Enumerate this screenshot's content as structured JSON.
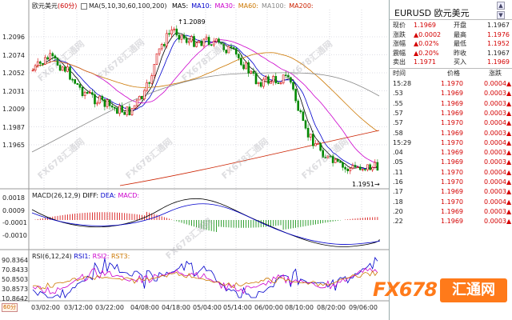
{
  "main_header": {
    "symbol_name": "欧元美元",
    "period": "(60分)",
    "ma_params": "MA(5,10,30,60,100,200)",
    "ma_labels": [
      {
        "label": "MA5:",
        "color": "#000000"
      },
      {
        "label": "MA10:",
        "color": "#0000cc"
      },
      {
        "label": "MA30:",
        "color": "#cc00cc"
      },
      {
        "label": "MA60:",
        "color": "#cc7700"
      },
      {
        "label": "MA100:",
        "color": "#888888"
      },
      {
        "label": "MA200:",
        "color": "#cc2200"
      }
    ]
  },
  "macd_header": {
    "params": "MACD(26,12,9)",
    "diff": "DIFF:",
    "dea": "DEA:",
    "macd": "MACD:"
  },
  "rsi_header": {
    "params": "RSI(6,12,24)",
    "rsi1": "RSI1:",
    "rsi2": "RSI2:",
    "rsi3": "RST3:"
  },
  "price_axis": [
    "1.2096",
    "1.2074",
    "1.2052",
    "1.2031",
    "1.2009",
    "1.1987",
    "1.1965"
  ],
  "macd_axis": [
    "0.0018",
    "0.0009",
    "-0.0001",
    "-0.0010"
  ],
  "rsi_axis": [
    "90.8364",
    "70.8433",
    "50.8503",
    "30.8573",
    "10.8642"
  ],
  "x_axis": [
    "03/02:00",
    "03/12:00",
    "03/22:00",
    "04/08:00",
    "04/18:00",
    "05/04:00",
    "05/14:00",
    "06/00:00",
    "08/10:00",
    "08/20:00",
    "09/06:00"
  ],
  "annotations": {
    "high": "1.2089",
    "low": "1.1951"
  },
  "period_button": "60分",
  "watermarks": [
    "FX678汇通网",
    "FX678汇通网",
    "FX678汇通网",
    "FX678汇通网",
    "FX678汇通网",
    "FX678汇通网",
    "FX678汇通网",
    "FX678汇通网",
    "FX678汇通网"
  ],
  "logo": {
    "fx": "FX678",
    "cn": "汇通网"
  },
  "quote": {
    "symbol": "EURUSD",
    "name": "欧元美元",
    "rows": [
      {
        "l1": "现价",
        "v1": "1.1969",
        "l2": "开盘",
        "v2": "1.1967"
      },
      {
        "l1": "涨跌",
        "v1": "▲0.0002",
        "l2": "最高",
        "v2": "1.1976"
      },
      {
        "l1": "涨幅",
        "v1": "▲0.02%",
        "l2": "最低",
        "v2": "1.1952"
      },
      {
        "l1": "震幅",
        "v1": "▲0.20%",
        "l2": "昨收",
        "v2": "1.1967"
      },
      {
        "l1": "卖出",
        "v1": "1.1971",
        "l2": "买入",
        "v2": "1.1969"
      }
    ],
    "tick_header": {
      "time": "时间",
      "price": "价格",
      "change": "涨跌"
    },
    "ticks": [
      {
        "t": "15:28",
        "p": "1.1970",
        "c": "0.0004▲"
      },
      {
        "t": ".53",
        "p": "1.1969",
        "c": "0.0003▲"
      },
      {
        "t": ".55",
        "p": "1.1969",
        "c": "0.0003▲"
      },
      {
        "t": ".57",
        "p": "1.1969",
        "c": "0.0003▲"
      },
      {
        "t": ".57",
        "p": "1.1970",
        "c": "0.0004▲"
      },
      {
        "t": ".58",
        "p": "1.1969",
        "c": "0.0003▲"
      },
      {
        "t": "15:29",
        "p": "1.1970",
        "c": "0.0004▲"
      },
      {
        "t": ".04",
        "p": "1.1969",
        "c": "0.0003▲"
      },
      {
        "t": ".05",
        "p": "1.1969",
        "c": "0.0003▲"
      },
      {
        "t": ".11",
        "p": "1.1970",
        "c": "0.0004▲"
      },
      {
        "t": ".16",
        "p": "1.1970",
        "c": "0.0004▲"
      },
      {
        "t": ".17",
        "p": "1.1969",
        "c": "0.0003▲"
      },
      {
        "t": ".18",
        "p": "1.1970",
        "c": "0.0004▲"
      },
      {
        "t": ".20",
        "p": "1.1969",
        "c": "0.0003▲"
      },
      {
        "t": ".22",
        "p": "1.1969",
        "c": "0.0003▲"
      }
    ]
  },
  "colors": {
    "up": "#d40000",
    "down": "#008800",
    "grid": "#bfbfcf",
    "ma5": "#000000",
    "ma10": "#0000cc",
    "ma30": "#cc00cc",
    "ma60": "#cc7700",
    "ma100": "#888888",
    "ma200": "#cc2200"
  }
}
